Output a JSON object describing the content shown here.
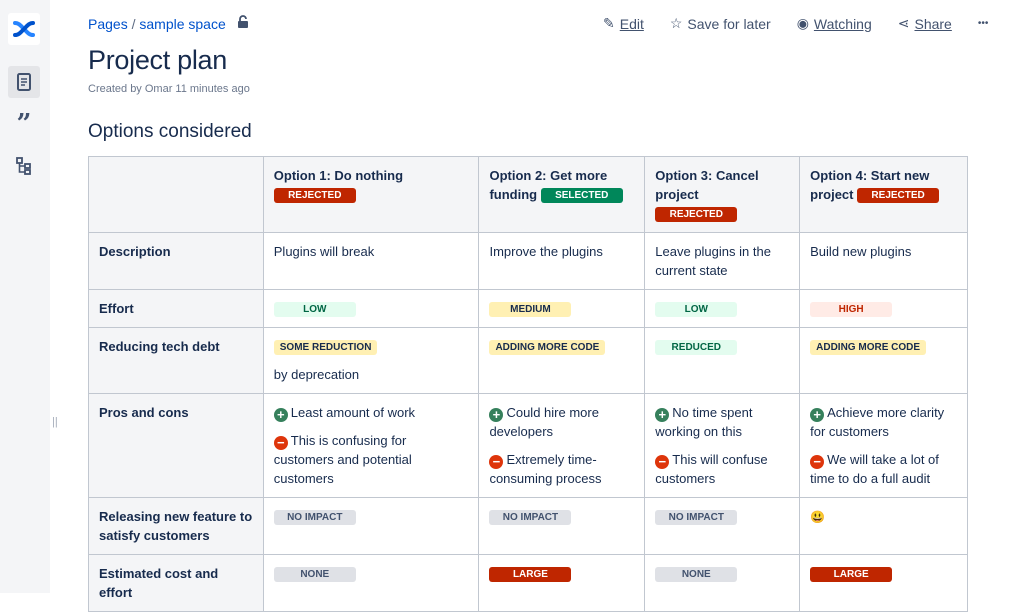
{
  "breadcrumb": {
    "pages": "Pages",
    "separator": "/",
    "space": "sample space"
  },
  "actions": {
    "edit": "Edit",
    "save": "Save for later",
    "watch": "Watching",
    "share": "Share",
    "more": "•••"
  },
  "page": {
    "title": "Project plan",
    "meta": "Created by Omar 11 minutes ago",
    "section": "Options considered"
  },
  "colors": {
    "rejected": "#bf2600",
    "selected": "#00875a",
    "link": "#0052cc"
  },
  "table": {
    "options": [
      {
        "title": "Option 1: Do nothing",
        "status": "REJECTED",
        "status_color": "red"
      },
      {
        "title": "Option 2: Get more funding",
        "status": "SELECTED",
        "status_color": "green"
      },
      {
        "title": "Option 3: Cancel project",
        "status": "REJECTED",
        "status_color": "red"
      },
      {
        "title": "Option 4: Start new project",
        "status": "REJECTED",
        "status_color": "red"
      }
    ],
    "rows": {
      "description": {
        "label": "Description",
        "values": [
          "Plugins will break",
          "Improve the plugins",
          "Leave plugins in the current state",
          "Build new plugins"
        ]
      },
      "effort": {
        "label": "Effort",
        "values": [
          "LOW",
          "MEDIUM",
          "LOW",
          "HIGH"
        ]
      },
      "tech_debt": {
        "label": "Reducing tech debt",
        "values": [
          "SOME REDUCTION",
          "ADDING MORE CODE",
          "REDUCED",
          "ADDING MORE CODE"
        ],
        "note": "by deprecation"
      },
      "pros_cons": {
        "label": "Pros and cons",
        "pros": [
          "Least amount of work",
          "Could hire more developers",
          "No time spent working on this",
          "Achieve more clarity for customers"
        ],
        "cons": [
          "This is confusing for customers and potential customers",
          "Extremely time-consuming process",
          "This will confuse customers",
          "We will take a lot of time to do a full audit"
        ]
      },
      "releasing": {
        "label": "Releasing new feature to satisfy customers",
        "values": [
          "NO IMPACT",
          "NO IMPACT",
          "NO IMPACT",
          "😃"
        ]
      },
      "cost": {
        "label": "Estimated cost and effort",
        "values": [
          "NONE",
          "LARGE",
          "NONE",
          "LARGE"
        ]
      }
    }
  }
}
